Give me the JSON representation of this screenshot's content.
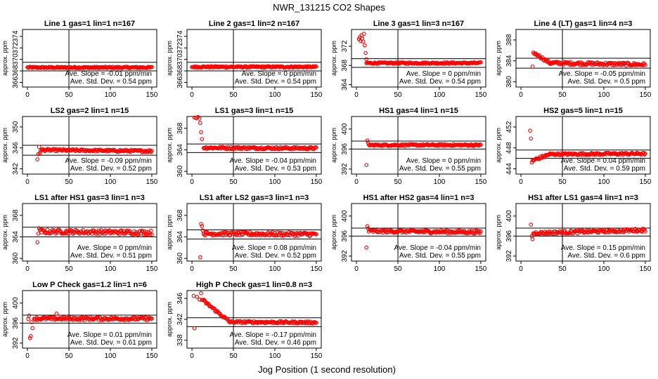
{
  "title": "NWR_131215  CO2 Shapes",
  "chart_data": {
    "type": "scatter",
    "xlabel": "Jog Position (1 second resolution)",
    "point_color": "#ff0000",
    "panels": [
      {
        "title": "Line 1 gas=1 lin=1 n=167",
        "ylabel": "approx. ppm",
        "yticks": [
          366,
          368,
          370,
          372,
          374
        ],
        "ylim": [
          365.2,
          375.2
        ],
        "xlim": [
          -6,
          156
        ],
        "hlines": [
          369.5,
          368.0
        ],
        "slope": "Ave. Slope = -0.01  ppm/min",
        "sd": "Ave. Std. Dev. =  0.54  ppm",
        "segments": [
          {
            "x0": 0,
            "x1": 150,
            "y0": 368.6,
            "y1": 368.6,
            "noise": 0.12
          }
        ],
        "extra": []
      },
      {
        "title": "Line 2 gas=1 lin=2 n=167",
        "ylabel": "approx. ppm",
        "yticks": [
          366,
          368,
          370,
          372,
          374
        ],
        "ylim": [
          365.2,
          375.2
        ],
        "xlim": [
          -6,
          156
        ],
        "hlines": [
          369.5,
          368.0
        ],
        "slope": "Ave. Slope = 0  ppm/min",
        "sd": "Ave. Std. Dev. =  0.54  ppm",
        "segments": [
          {
            "x0": 0,
            "x1": 150,
            "y0": 368.7,
            "y1": 368.7,
            "noise": 0.12
          }
        ],
        "extra": []
      },
      {
        "title": "Line 3 gas=1 lin=3 n=167",
        "ylabel": "approx. ppm",
        "yticks": [
          364,
          368,
          372
        ],
        "ylim": [
          363.5,
          375.5
        ],
        "xlim": [
          -6,
          156
        ],
        "hlines": [
          369.4,
          367.6
        ],
        "slope": "Ave. Slope = 0  ppm/min",
        "sd": "Ave. Std. Dev. =  0.54  ppm",
        "segments": [
          {
            "x0": 12,
            "x1": 150,
            "y0": 368.5,
            "y1": 368.5,
            "noise": 0.15
          }
        ],
        "extra": [
          [
            3,
            373.5
          ],
          [
            4,
            373.9
          ],
          [
            5,
            373.1
          ],
          [
            6,
            374.3
          ],
          [
            7,
            373.6
          ],
          [
            8,
            373.0
          ],
          [
            9,
            374.6
          ],
          [
            10,
            372.2
          ],
          [
            11,
            370.6
          ],
          [
            12,
            369.3
          ]
        ]
      },
      {
        "title": "Line 4 (LT) gas=1 lin=4 n=3",
        "ylabel": "approx. ppm",
        "yticks": [
          380,
          384,
          388
        ],
        "ylim": [
          379,
          390
        ],
        "xlim": [
          -6,
          156
        ],
        "hlines": [
          384.5,
          382.6
        ],
        "slope": "Ave. Slope = -0.05  ppm/min",
        "sd": "Ave. Std. Dev. =  0.5  ppm",
        "segments": [
          {
            "x0": 16,
            "x1": 35,
            "y0": 385.5,
            "y1": 383.6,
            "noise": 0.25
          },
          {
            "x0": 35,
            "x1": 150,
            "y0": 383.6,
            "y1": 383.3,
            "noise": 0.3
          }
        ],
        "extra": [
          [
            14,
            382.9
          ],
          [
            15,
            385.6
          ]
        ]
      },
      {
        "title": "LS2 gas=2 lin=1 n=15",
        "ylabel": "approx. ppm",
        "yticks": [
          342,
          346,
          350
        ],
        "ylim": [
          341,
          352
        ],
        "xlim": [
          -6,
          156
        ],
        "hlines": [
          346.5,
          344.6
        ],
        "slope": "Ave. Slope = -0.09  ppm/min",
        "sd": "Ave. Std. Dev. =  0.52  ppm",
        "segments": [
          {
            "x0": 16,
            "x1": 150,
            "y0": 345.6,
            "y1": 345.4,
            "noise": 0.2
          }
        ],
        "extra": [
          [
            12,
            343.8
          ],
          [
            13,
            344.8
          ],
          [
            14,
            346.2
          ],
          [
            15,
            345.0
          ]
        ]
      },
      {
        "title": "LS1 gas=3 lin=1 n=15",
        "ylabel": "approx. ppm",
        "yticks": [
          360,
          364,
          368
        ],
        "ylim": [
          359.5,
          370.2
        ],
        "xlim": [
          -6,
          156
        ],
        "hlines": [
          365.1,
          363.5
        ],
        "slope": "Ave. Slope = -0.04  ppm/min",
        "sd": "Ave. Std. Dev. =  0.53  ppm",
        "segments": [
          {
            "x0": 14,
            "x1": 150,
            "y0": 364.4,
            "y1": 364.3,
            "noise": 0.22
          }
        ],
        "extra": [
          [
            3,
            370.0
          ],
          [
            5,
            369.9
          ],
          [
            7,
            370.1
          ],
          [
            9,
            369.8
          ],
          [
            10,
            369.0
          ],
          [
            11,
            367.3
          ],
          [
            12,
            366.0
          ]
        ]
      },
      {
        "title": "HS1 gas=4 lin=1 n=15",
        "ylabel": "approx. ppm",
        "yticks": [
          392,
          396,
          400
        ],
        "ylim": [
          391,
          402.5
        ],
        "xlim": [
          -6,
          156
        ],
        "hlines": [
          397.6,
          396.0
        ],
        "slope": "Ave. Slope = 0  ppm/min",
        "sd": "Ave. Std. Dev. =  0.55  ppm",
        "segments": [
          {
            "x0": 15,
            "x1": 150,
            "y0": 396.8,
            "y1": 396.8,
            "noise": 0.18
          }
        ],
        "extra": [
          [
            12,
            392.8
          ],
          [
            13,
            397.7
          ],
          [
            14,
            397.2
          ]
        ]
      },
      {
        "title": "HS2 gas=5 lin=1 n=15",
        "ylabel": "approx. ppm",
        "yticks": [
          444,
          448,
          452
        ],
        "ylim": [
          443,
          454
        ],
        "xlim": [
          -6,
          156
        ],
        "hlines": [
          447.6,
          446.0
        ],
        "slope": "Ave. Slope = 0.04  ppm/min",
        "sd": "Ave. Std. Dev. =  0.59  ppm",
        "segments": [
          {
            "x0": 14,
            "x1": 35,
            "y0": 445.6,
            "y1": 446.8,
            "noise": 0.25
          },
          {
            "x0": 35,
            "x1": 150,
            "y0": 446.8,
            "y1": 446.9,
            "noise": 0.2
          }
        ],
        "extra": [
          [
            11,
            451.3
          ],
          [
            12,
            449.8
          ],
          [
            13,
            445.2
          ]
        ]
      },
      {
        "title": "LS1 after HS1 gas=3 lin=1 n=3",
        "ylabel": "approx. ppm",
        "yticks": [
          360,
          364,
          368
        ],
        "ylim": [
          359.5,
          370.2
        ],
        "xlim": [
          -6,
          156
        ],
        "hlines": [
          365.8,
          364.0
        ],
        "slope": "Ave. Slope = 0  ppm/min",
        "sd": "Ave. Std. Dev. =  0.51  ppm",
        "segments": [
          {
            "x0": 15,
            "x1": 150,
            "y0": 365.0,
            "y1": 364.8,
            "noise": 0.4
          }
        ],
        "extra": [
          [
            12,
            363.0
          ],
          [
            13,
            364.6
          ],
          [
            14,
            365.6
          ]
        ]
      },
      {
        "title": "LS1 after LS2 gas=3 lin=1 n=3",
        "ylabel": "approx. ppm",
        "yticks": [
          360,
          364,
          368
        ],
        "ylim": [
          359.5,
          370.2
        ],
        "xlim": [
          -6,
          156
        ],
        "hlines": [
          365.3,
          363.6
        ],
        "slope": "Ave. Slope = 0.08  ppm/min",
        "sd": "Ave. Std. Dev. =  0.52  ppm",
        "segments": [
          {
            "x0": 14,
            "x1": 150,
            "y0": 364.6,
            "y1": 364.5,
            "noise": 0.35
          }
        ],
        "extra": [
          [
            10,
            360.2
          ],
          [
            11,
            366.4
          ],
          [
            12,
            366.0
          ],
          [
            13,
            365.2
          ]
        ]
      },
      {
        "title": "HS1 after HS2 gas=4 lin=1 n=3",
        "ylabel": "approx. ppm",
        "yticks": [
          392,
          396,
          400
        ],
        "ylim": [
          391,
          402.5
        ],
        "xlim": [
          -6,
          156
        ],
        "hlines": [
          397.6,
          396.0
        ],
        "slope": "Ave. Slope = -0.04  ppm/min",
        "sd": "Ave. Std. Dev. =  0.55  ppm",
        "segments": [
          {
            "x0": 15,
            "x1": 150,
            "y0": 397.0,
            "y1": 396.8,
            "noise": 0.3
          }
        ],
        "extra": [
          [
            12,
            393.7
          ],
          [
            13,
            398.0
          ],
          [
            14,
            397.5
          ]
        ]
      },
      {
        "title": "HS1 after LS1 gas=4 lin=1 n=3",
        "ylabel": "approx. ppm",
        "yticks": [
          392,
          396,
          400
        ],
        "ylim": [
          391,
          402.5
        ],
        "xlim": [
          -6,
          156
        ],
        "hlines": [
          397.6,
          396.0
        ],
        "slope": "Ave. Slope = 0.15  ppm/min",
        "sd": "Ave. Std. Dev. =  0.6  ppm",
        "segments": [
          {
            "x0": 15,
            "x1": 150,
            "y0": 396.6,
            "y1": 397.2,
            "noise": 0.3
          }
        ],
        "extra": [
          [
            12,
            398.3
          ],
          [
            13,
            396.0
          ],
          [
            14,
            395.4
          ]
        ]
      },
      {
        "title": "Low P Check gas=1.2 lin=1 n=6",
        "ylabel": "approx. ppm",
        "yticks": [
          392,
          396,
          400
        ],
        "ylim": [
          391,
          402.5
        ],
        "xlim": [
          -6,
          156
        ],
        "hlines": [
          397.6,
          396.0
        ],
        "slope": "Ave. Slope = 0.01  ppm/min",
        "sd": "Ave. Std. Dev. =  0.61  ppm",
        "segments": [
          {
            "x0": 8,
            "x1": 150,
            "y0": 396.9,
            "y1": 396.9,
            "noise": 0.3
          }
        ],
        "extra": [
          [
            1,
            396.8
          ],
          [
            2,
            397.5
          ],
          [
            3,
            393.0
          ],
          [
            4,
            393.4
          ],
          [
            5,
            396.2
          ],
          [
            6,
            395.0
          ],
          [
            35,
            397.9
          ]
        ]
      },
      {
        "title": "High P Check gas=1 lin=0.8 n=3",
        "ylabel": "approx. ppm",
        "yticks": [
          338,
          342,
          346
        ],
        "ylim": [
          336.5,
          347.5
        ],
        "xlim": [
          -6,
          156
        ],
        "hlines": [
          342.3,
          340.6
        ],
        "slope": "Ave. Slope = -0.17  ppm/min",
        "sd": "Ave. Std. Dev. =  0.46  ppm",
        "segments": [
          {
            "x0": 12,
            "x1": 45,
            "y0": 345.8,
            "y1": 341.6,
            "noise": 0.25
          },
          {
            "x0": 45,
            "x1": 150,
            "y0": 341.5,
            "y1": 341.4,
            "noise": 0.2
          }
        ],
        "extra": [
          [
            2,
            346.5
          ],
          [
            3,
            340.3
          ],
          [
            6,
            346.3
          ],
          [
            9,
            345.8
          ],
          [
            11,
            347.0
          ]
        ]
      }
    ]
  }
}
